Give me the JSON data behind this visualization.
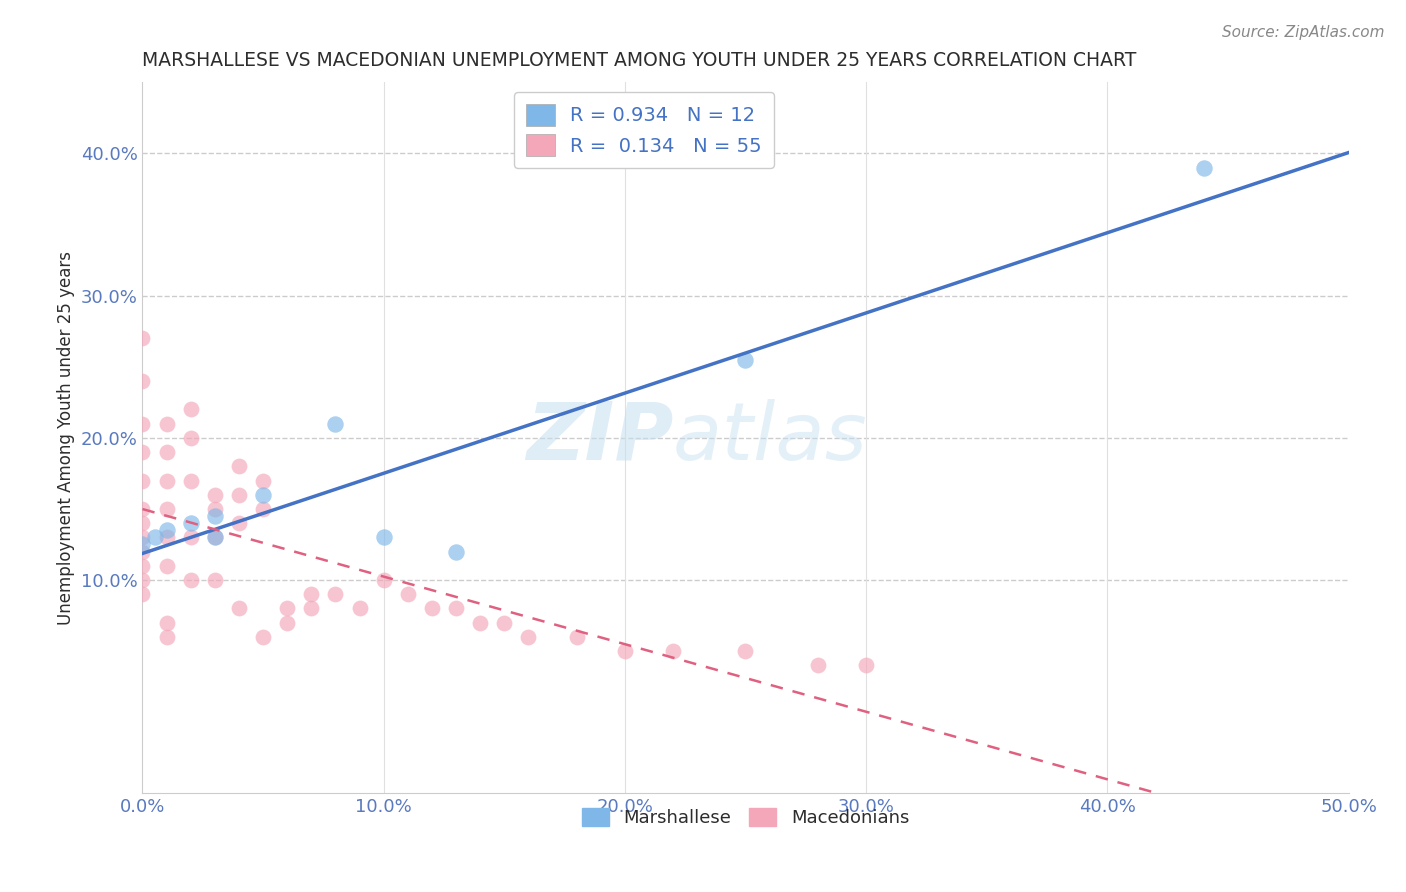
{
  "title": "MARSHALLESE VS MACEDONIAN UNEMPLOYMENT AMONG YOUTH UNDER 25 YEARS CORRELATION CHART",
  "source": "Source: ZipAtlas.com",
  "ylabel": "Unemployment Among Youth under 25 years",
  "xlim": [
    0.0,
    0.5
  ],
  "ylim": [
    -0.05,
    0.45
  ],
  "xticks": [
    0.0,
    0.1,
    0.2,
    0.3,
    0.4,
    0.5
  ],
  "yticks": [
    0.1,
    0.2,
    0.3,
    0.4
  ],
  "ytick_labels": [
    "10.0%",
    "20.0%",
    "30.0%",
    "40.0%"
  ],
  "xtick_labels": [
    "0.0%",
    "10.0%",
    "20.0%",
    "30.0%",
    "40.0%",
    "50.0%"
  ],
  "background_color": "#ffffff",
  "grid_color": "#cccccc",
  "watermark_zip": "ZIP",
  "watermark_atlas": "atlas",
  "R_marshallese": 0.934,
  "N_marshallese": 12,
  "R_macedonian": 0.134,
  "N_macedonian": 55,
  "marshallese_color": "#7eb7e8",
  "macedonian_color": "#f4a7b9",
  "marshallese_line_color": "#4472c4",
  "macedonian_line_color": "#e06080",
  "marshallese_x": [
    0.0,
    0.005,
    0.01,
    0.02,
    0.03,
    0.05,
    0.08,
    0.1,
    0.13,
    0.25,
    0.44,
    0.03
  ],
  "marshallese_y": [
    0.125,
    0.13,
    0.135,
    0.14,
    0.145,
    0.16,
    0.21,
    0.13,
    0.12,
    0.255,
    0.39,
    0.13
  ],
  "macedonian_x": [
    0.0,
    0.0,
    0.0,
    0.0,
    0.0,
    0.0,
    0.0,
    0.0,
    0.0,
    0.0,
    0.0,
    0.0,
    0.01,
    0.01,
    0.01,
    0.01,
    0.01,
    0.01,
    0.01,
    0.01,
    0.02,
    0.02,
    0.02,
    0.02,
    0.02,
    0.03,
    0.03,
    0.03,
    0.03,
    0.04,
    0.04,
    0.04,
    0.04,
    0.05,
    0.05,
    0.05,
    0.06,
    0.06,
    0.07,
    0.07,
    0.08,
    0.09,
    0.1,
    0.11,
    0.12,
    0.13,
    0.14,
    0.15,
    0.16,
    0.18,
    0.2,
    0.22,
    0.25,
    0.28,
    0.3
  ],
  "macedonian_y": [
    0.27,
    0.24,
    0.21,
    0.19,
    0.17,
    0.15,
    0.14,
    0.13,
    0.12,
    0.11,
    0.1,
    0.09,
    0.21,
    0.19,
    0.17,
    0.15,
    0.13,
    0.11,
    0.07,
    0.06,
    0.22,
    0.2,
    0.17,
    0.13,
    0.1,
    0.16,
    0.15,
    0.13,
    0.1,
    0.18,
    0.16,
    0.14,
    0.08,
    0.17,
    0.15,
    0.06,
    0.08,
    0.07,
    0.09,
    0.08,
    0.09,
    0.08,
    0.1,
    0.09,
    0.08,
    0.08,
    0.07,
    0.07,
    0.06,
    0.06,
    0.05,
    0.05,
    0.05,
    0.04,
    0.04
  ],
  "title_color": "#2d2d2d",
  "tick_color": "#5a7abf",
  "legend_text_color": "#4472c4"
}
